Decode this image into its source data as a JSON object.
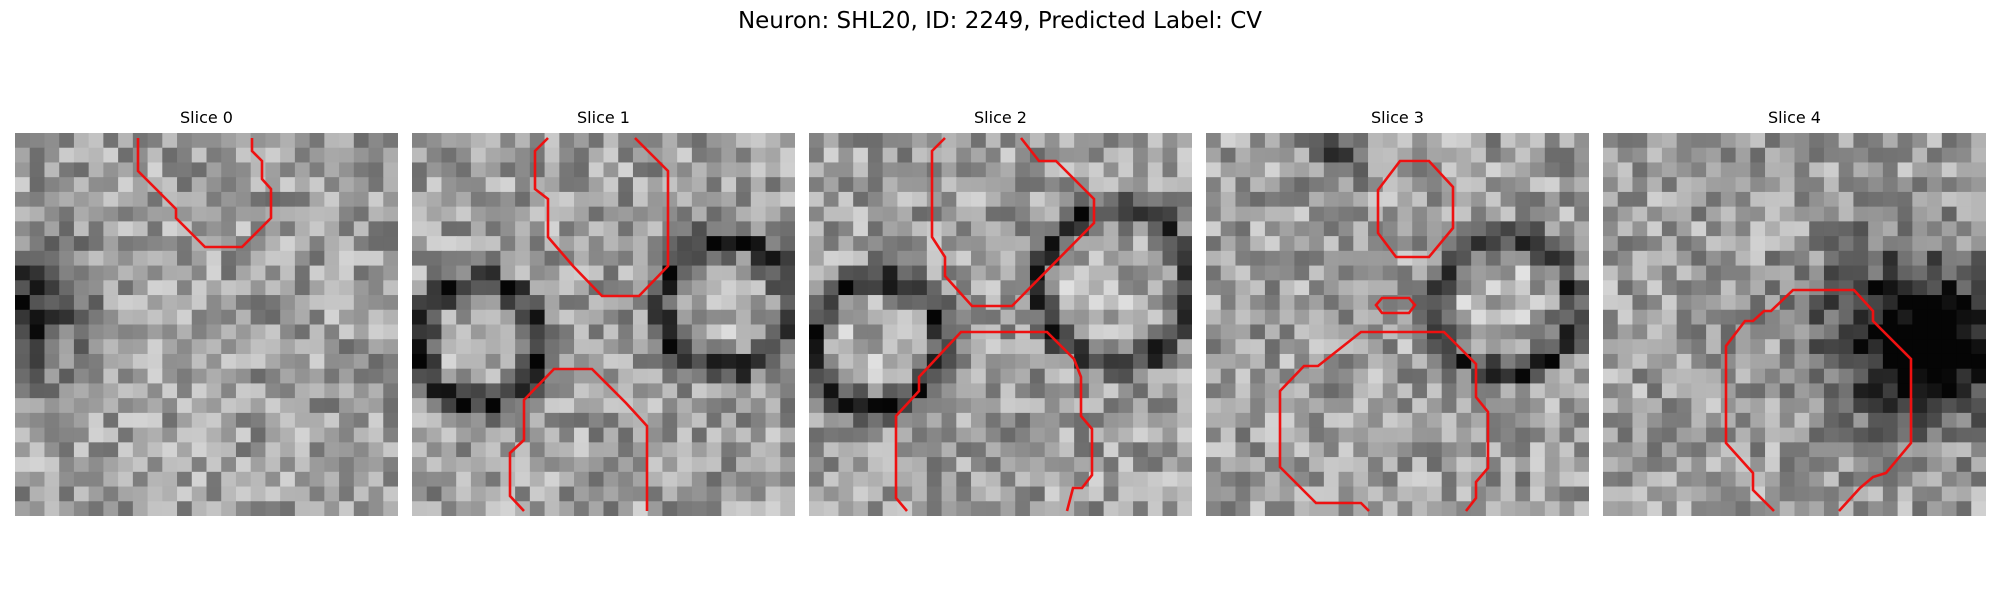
{
  "figure": {
    "title": "Neuron: SHL20, ID: 2249, Predicted Label: CV"
  },
  "colors": {
    "contour": "#ee1111",
    "background": "#ffffff"
  },
  "panels": [
    {
      "title": "Slice 0",
      "seed": 11,
      "dark_blobs": [
        [
          0.0,
          0.45,
          0.15,
          1.0
        ]
      ],
      "rings": []
    },
    {
      "title": "Slice 1",
      "seed": 23,
      "dark_blobs": [],
      "rings": [
        [
          0.18,
          0.55,
          0.16
        ],
        [
          0.82,
          0.45,
          0.17
        ]
      ]
    },
    {
      "title": "Slice 2",
      "seed": 37,
      "dark_blobs": [],
      "rings": [
        [
          0.18,
          0.55,
          0.17
        ],
        [
          0.8,
          0.4,
          0.2
        ]
      ]
    },
    {
      "title": "Slice 3",
      "seed": 41,
      "dark_blobs": [
        [
          0.35,
          0.05,
          0.06,
          0.8
        ]
      ],
      "rings": [
        [
          0.78,
          0.45,
          0.18
        ]
      ]
    },
    {
      "title": "Slice 4",
      "seed": 53,
      "dark_blobs": [
        [
          0.78,
          0.52,
          0.22,
          1.0
        ],
        [
          0.9,
          0.58,
          0.15,
          0.8
        ]
      ],
      "rings": []
    }
  ]
}
